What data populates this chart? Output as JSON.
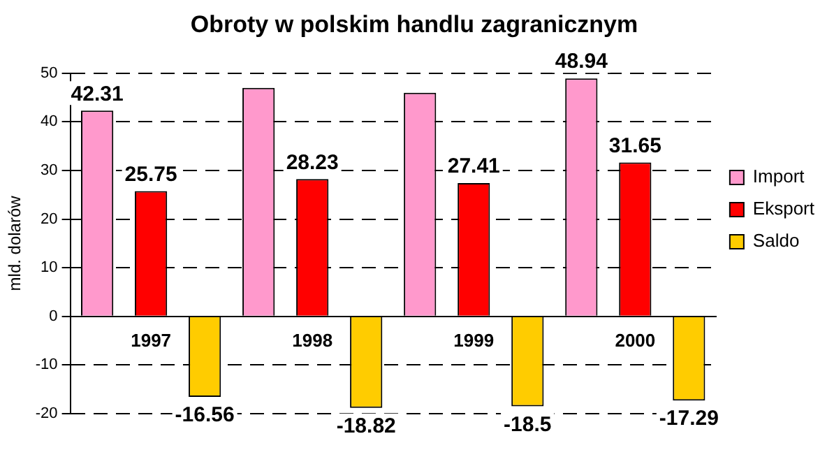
{
  "chart_data": {
    "type": "bar",
    "title": "Obroty w polskim handlu zagranicznym",
    "ylabel": "mld. dolarów",
    "categories": [
      "1997",
      "1998",
      "1999",
      "2000"
    ],
    "series": [
      {
        "name": "Import",
        "color": "#ff99cc",
        "values": [
          42.31,
          47,
          46,
          48.94
        ],
        "value_labels": [
          "42.31",
          null,
          null,
          "48.94"
        ]
      },
      {
        "name": "Eksport",
        "color": "#ff0000",
        "values": [
          25.75,
          28.23,
          27.41,
          31.65
        ],
        "value_labels": [
          "25.75",
          "28.23",
          "27.41",
          "31.65"
        ]
      },
      {
        "name": "Saldo",
        "color": "#ffcc00",
        "values": [
          -16.56,
          -18.82,
          -18.5,
          -17.29
        ],
        "value_labels": [
          "-16.56",
          "-18.82",
          "-18.5",
          "-17.29"
        ]
      }
    ],
    "ylim": [
      -20,
      50
    ],
    "yticks": [
      -20,
      -10,
      0,
      10,
      20,
      30,
      40,
      50
    ],
    "grid": "y",
    "legend": "right"
  }
}
